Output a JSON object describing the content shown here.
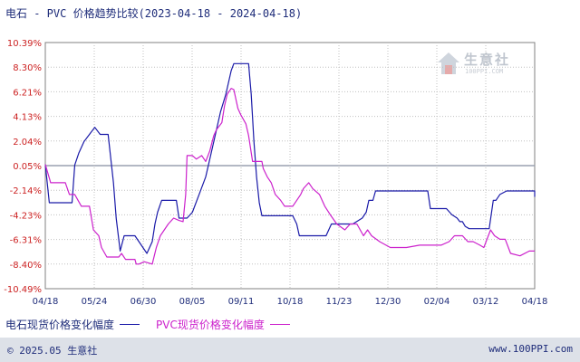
{
  "title": "电石 - PVC 价格趋势比较(2023-04-18 - 2024-04-18)",
  "watermark": {
    "brand": "生意社",
    "site": "100PPI.COM"
  },
  "footer": {
    "copyright": "© 2025.05 生意社",
    "url": "www.100PPI.com"
  },
  "colors": {
    "carbide": "#1a1aa8",
    "pvc": "#cc22cc",
    "grid": "#c0c0c0",
    "axis_text": "#cc2222",
    "date_text": "#1f2d7a",
    "zero_line": "#9aa0b0"
  },
  "chart_data": {
    "type": "line",
    "title": "电石 - PVC 价格趋势比较(2023-04-18 - 2024-04-18)",
    "xlabel": "",
    "ylabel": "",
    "x_ticks": [
      "04/18",
      "05/24",
      "06/30",
      "08/05",
      "09/11",
      "10/18",
      "11/23",
      "12/30",
      "02/04",
      "03/12",
      "04/18"
    ],
    "y_ticks": [
      "10.39%",
      "8.30%",
      "6.21%",
      "4.13%",
      "2.04%",
      "0.05%",
      "-2.14%",
      "-4.23%",
      "-6.31%",
      "-8.40%",
      "-10.49%"
    ],
    "ylim": [
      -10.49,
      10.39
    ],
    "x_range": [
      0,
      366
    ],
    "grid": true,
    "legend_position": "bottom-left",
    "series": [
      {
        "name": "电石现货价格变化幅度",
        "points": [
          [
            0,
            0.05
          ],
          [
            3,
            -3.2
          ],
          [
            20,
            -3.2
          ],
          [
            22,
            0
          ],
          [
            25,
            1.0
          ],
          [
            29,
            2.0
          ],
          [
            33,
            2.6
          ],
          [
            37,
            3.2
          ],
          [
            41,
            2.6
          ],
          [
            47,
            2.6
          ],
          [
            51,
            -1.5
          ],
          [
            53,
            -4.5
          ],
          [
            56,
            -7.3
          ],
          [
            59,
            -6.0
          ],
          [
            67,
            -6.0
          ],
          [
            70,
            -6.5
          ],
          [
            73,
            -7.0
          ],
          [
            76,
            -7.5
          ],
          [
            80,
            -6.5
          ],
          [
            82,
            -5.0
          ],
          [
            84,
            -4.0
          ],
          [
            87,
            -3.0
          ],
          [
            90,
            -3.0
          ],
          [
            98,
            -3.0
          ],
          [
            100,
            -4.5
          ],
          [
            106,
            -4.5
          ],
          [
            110,
            -4.0
          ],
          [
            115,
            -2.5
          ],
          [
            120,
            -1.0
          ],
          [
            124,
            1.0
          ],
          [
            128,
            3.0
          ],
          [
            131,
            4.5
          ],
          [
            135,
            6.0
          ],
          [
            139,
            8.0
          ],
          [
            141,
            8.6
          ],
          [
            152,
            8.6
          ],
          [
            154,
            6.0
          ],
          [
            156,
            2.0
          ],
          [
            158,
            -1.0
          ],
          [
            160,
            -3.2
          ],
          [
            162,
            -4.3
          ],
          [
            185,
            -4.3
          ],
          [
            188,
            -5.0
          ],
          [
            190,
            -6.0
          ],
          [
            204,
            -6.0
          ],
          [
            210,
            -6.0
          ],
          [
            214,
            -5.0
          ],
          [
            230,
            -5.0
          ],
          [
            237,
            -4.5
          ],
          [
            240,
            -4.0
          ],
          [
            242,
            -3.0
          ],
          [
            245,
            -3.0
          ],
          [
            247,
            -2.2
          ],
          [
            286,
            -2.2
          ],
          [
            288,
            -3.7
          ],
          [
            300,
            -3.7
          ],
          [
            304,
            -4.2
          ],
          [
            308,
            -4.5
          ],
          [
            310,
            -4.8
          ],
          [
            312,
            -4.8
          ],
          [
            314,
            -5.2
          ],
          [
            317,
            -5.4
          ],
          [
            323,
            -5.4
          ],
          [
            332,
            -5.4
          ],
          [
            335,
            -3.0
          ],
          [
            337,
            -3.0
          ],
          [
            340,
            -2.5
          ],
          [
            345,
            -2.2
          ],
          [
            357,
            -2.2
          ],
          [
            366,
            -2.2
          ],
          [
            366,
            -2.7
          ]
        ]
      },
      {
        "name": "PVC现货价格变化幅度",
        "points": [
          [
            0,
            0.05
          ],
          [
            4,
            -1.5
          ],
          [
            8,
            -1.5
          ],
          [
            15,
            -1.5
          ],
          [
            18,
            -2.5
          ],
          [
            22,
            -2.5
          ],
          [
            27,
            -3.5
          ],
          [
            33,
            -3.5
          ],
          [
            36,
            -5.5
          ],
          [
            40,
            -6.0
          ],
          [
            42,
            -7.0
          ],
          [
            46,
            -7.8
          ],
          [
            55,
            -7.8
          ],
          [
            57,
            -7.5
          ],
          [
            60,
            -8.0
          ],
          [
            67,
            -8.0
          ],
          [
            68,
            -8.4
          ],
          [
            70,
            -8.4
          ],
          [
            74,
            -8.2
          ],
          [
            80,
            -8.4
          ],
          [
            83,
            -7.0
          ],
          [
            86,
            -6.0
          ],
          [
            89,
            -5.5
          ],
          [
            92,
            -5.0
          ],
          [
            96,
            -4.5
          ],
          [
            100,
            -4.7
          ],
          [
            103,
            -4.8
          ],
          [
            105,
            -2.5
          ],
          [
            106,
            0.8
          ],
          [
            110,
            0.8
          ],
          [
            113,
            0.5
          ],
          [
            117,
            0.8
          ],
          [
            120,
            0.3
          ],
          [
            123,
            1.2
          ],
          [
            126,
            2.5
          ],
          [
            128,
            3.0
          ],
          [
            132,
            3.6
          ],
          [
            134,
            5.0
          ],
          [
            136,
            6.0
          ],
          [
            139,
            6.5
          ],
          [
            141,
            6.4
          ],
          [
            144,
            4.8
          ],
          [
            146,
            4.3
          ],
          [
            150,
            3.5
          ],
          [
            152,
            2.5
          ],
          [
            155,
            0.3
          ],
          [
            162,
            0.3
          ],
          [
            163,
            -0.3
          ],
          [
            166,
            -1.0
          ],
          [
            169,
            -1.5
          ],
          [
            172,
            -2.5
          ],
          [
            176,
            -3.0
          ],
          [
            179,
            -3.5
          ],
          [
            185,
            -3.5
          ],
          [
            188,
            -3.0
          ],
          [
            191,
            -2.5
          ],
          [
            193,
            -2.0
          ],
          [
            197,
            -1.5
          ],
          [
            200,
            -2.0
          ],
          [
            205,
            -2.5
          ],
          [
            209,
            -3.5
          ],
          [
            213,
            -4.2
          ],
          [
            218,
            -5.0
          ],
          [
            224,
            -5.5
          ],
          [
            228,
            -5.0
          ],
          [
            233,
            -5.0
          ],
          [
            238,
            -6.0
          ],
          [
            241,
            -5.5
          ],
          [
            244,
            -6.0
          ],
          [
            250,
            -6.5
          ],
          [
            258,
            -7.0
          ],
          [
            270,
            -7.0
          ],
          [
            280,
            -6.8
          ],
          [
            290,
            -6.8
          ],
          [
            296,
            -6.8
          ],
          [
            302,
            -6.5
          ],
          [
            306,
            -6.0
          ],
          [
            312,
            -6.0
          ],
          [
            316,
            -6.5
          ],
          [
            320,
            -6.5
          ],
          [
            325,
            -6.8
          ],
          [
            328,
            -7.0
          ],
          [
            333,
            -5.5
          ],
          [
            336,
            -6.0
          ],
          [
            340,
            -6.3
          ],
          [
            344,
            -6.3
          ],
          [
            348,
            -7.5
          ],
          [
            355,
            -7.7
          ],
          [
            362,
            -7.3
          ],
          [
            366,
            -7.3
          ]
        ]
      }
    ]
  }
}
